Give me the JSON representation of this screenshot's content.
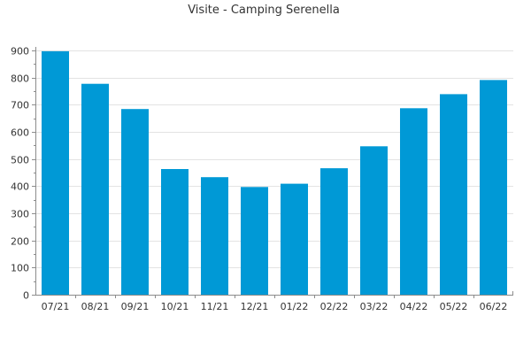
{
  "chart_data": {
    "type": "bar",
    "title": "Visite - Camping Serenella",
    "xlabel": "",
    "ylabel": "",
    "categories": [
      "07/21",
      "08/21",
      "09/21",
      "10/21",
      "11/21",
      "12/21",
      "01/22",
      "02/22",
      "03/22",
      "04/22",
      "05/22",
      "06/22"
    ],
    "values": [
      897,
      777,
      684,
      463,
      433,
      397,
      409,
      466,
      547,
      687,
      739,
      791
    ],
    "ylim": [
      0,
      900
    ],
    "yticks": [
      0,
      100,
      200,
      300,
      400,
      500,
      600,
      700,
      800,
      900
    ],
    "grid": true,
    "legend": "none",
    "colors": {
      "bar": "#0099d6",
      "grid": "#e3e3e3",
      "axis": "#8c8c8c",
      "text": "#333333"
    }
  }
}
